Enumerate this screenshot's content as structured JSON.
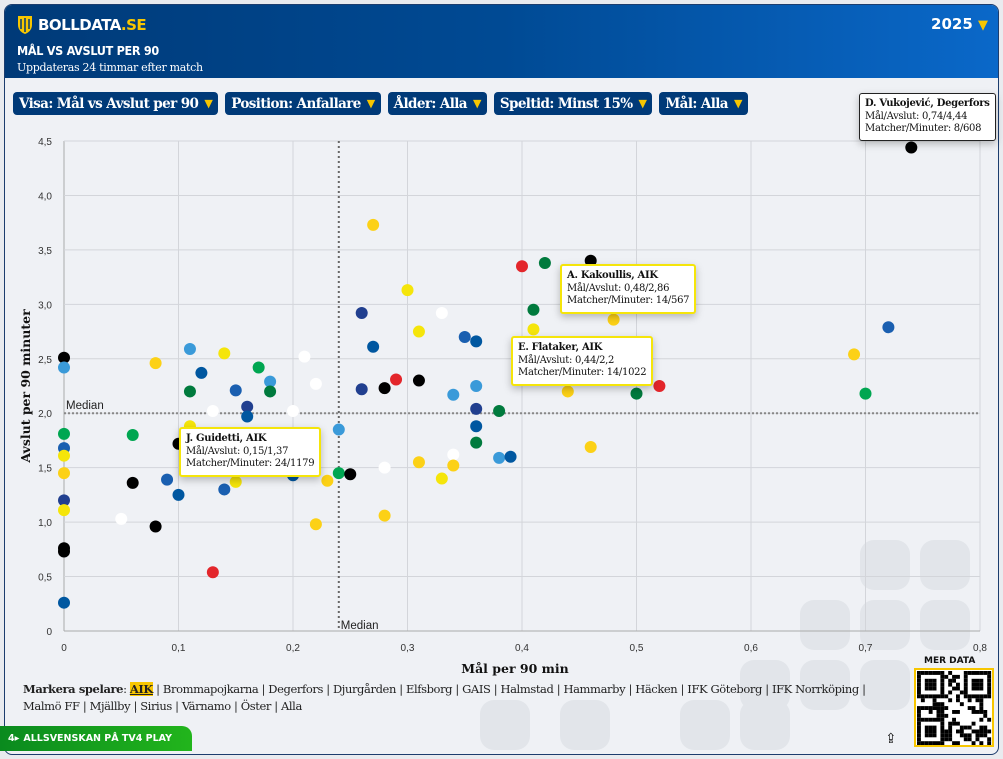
{
  "header": {
    "brand_main": "BOLLDATA",
    "brand_suffix": ".SE",
    "year": "2025",
    "title": "MÅL VS AVSLUT PER 90",
    "subtitle": "Uppdateras 24 timmar efter match"
  },
  "filters": [
    {
      "label": "Visa: Mål vs Avslut per 90"
    },
    {
      "label": "Position: Anfallare"
    },
    {
      "label": "Ålder: Alla"
    },
    {
      "label": "Speltid: Minst 15%"
    },
    {
      "label": "Mål: Alla"
    }
  ],
  "tooltips": [
    {
      "name": "D. Vukojević, Degerfors",
      "goals_shots": "Mål/Avslut: 0,74/4,44",
      "matches_minutes": "Matcher/Minuter: 8/608"
    },
    {
      "name": "A. Kakoullis, AIK",
      "goals_shots": "Mål/Avslut: 0,48/2,86",
      "matches_minutes": "Matcher/Minuter: 14/567"
    },
    {
      "name": "E. Flataker, AIK",
      "goals_shots": "Mål/Avslut: 0,44/2,2",
      "matches_minutes": "Matcher/Minuter: 14/1022"
    },
    {
      "name": "J. Guidetti, AIK",
      "goals_shots": "Mål/Avslut: 0,15/1,37",
      "matches_minutes": "Matcher/Minuter: 24/1179"
    }
  ],
  "legend": {
    "label": "Markera spelare",
    "teams": [
      "AIK",
      "Brommapojkarna",
      "Degerfors",
      "Djurgården",
      "Elfsborg",
      "GAIS",
      "Halmstad",
      "Hammarby",
      "Häcken",
      "IFK Göteborg",
      "IFK Norrköping",
      "Malmö FF",
      "Mjällby",
      "Sirius",
      "Värnamo",
      "Öster",
      "Alla"
    ],
    "selected": "AIK"
  },
  "promo": {
    "label": "ALLSVENSKAN PÅ TV4 PLAY",
    "icon": "tv4-logo"
  },
  "qr": {
    "label": "MER DATA"
  },
  "colors": {
    "black": "#000000",
    "lightblue": "#3a9ad9",
    "green": "#00a651",
    "darkgreen": "#007a3d",
    "blue": "#1a5fb0",
    "blue2": "#0057a0",
    "navy": "#213f8f",
    "yellow": "#f5e50a",
    "gold": "#fcd116",
    "red": "#e3262b",
    "white": "#ffffff"
  },
  "chart_data": {
    "type": "scatter",
    "xlabel": "Mål per 90 min",
    "ylabel": "Avslut per 90 minuter",
    "xlim": [
      0,
      0.8
    ],
    "ylim": [
      0,
      4.5
    ],
    "xticks": [
      "0",
      "0,1",
      "0,2",
      "0,3",
      "0,4",
      "0,5",
      "0,6",
      "0,7",
      "0,8"
    ],
    "yticks": [
      "0",
      "0,5",
      "1,0",
      "1,5",
      "2,0",
      "2,5",
      "3,0",
      "3,5",
      "4,0",
      "4,5"
    ],
    "grid": true,
    "median_x": 0.24,
    "median_y": 2.0,
    "median_label": "Median",
    "points": [
      [
        0,
        2.51,
        "black"
      ],
      [
        0,
        2.42,
        "lightblue"
      ],
      [
        0,
        1.81,
        "green"
      ],
      [
        0,
        1.68,
        "blue"
      ],
      [
        0,
        1.61,
        "yellow"
      ],
      [
        0,
        1.45,
        "gold"
      ],
      [
        0,
        1.2,
        "navy"
      ],
      [
        0,
        1.11,
        "yellow"
      ],
      [
        0,
        0.76,
        "black"
      ],
      [
        0,
        0.73,
        "black"
      ],
      [
        0,
        0.26,
        "blue2"
      ],
      [
        0.06,
        1.8,
        "green"
      ],
      [
        0.06,
        1.36,
        "black"
      ],
      [
        0.05,
        1.03,
        "white"
      ],
      [
        0.08,
        2.46,
        "gold"
      ],
      [
        0.08,
        0.96,
        "black"
      ],
      [
        0.09,
        1.39,
        "blue"
      ],
      [
        0.1,
        1.72,
        "black"
      ],
      [
        0.1,
        1.25,
        "blue2"
      ],
      [
        0.11,
        2.59,
        "lightblue"
      ],
      [
        0.11,
        2.2,
        "darkgreen"
      ],
      [
        0.11,
        1.88,
        "yellow"
      ],
      [
        0.12,
        2.37,
        "blue2"
      ],
      [
        0.13,
        2.02,
        "white"
      ],
      [
        0.13,
        0.54,
        "red"
      ],
      [
        0.14,
        2.55,
        "yellow"
      ],
      [
        0.14,
        1.3,
        "blue"
      ],
      [
        0.15,
        2.21,
        "blue"
      ],
      [
        0.15,
        1.37,
        "yellow"
      ],
      [
        0.16,
        2.06,
        "navy"
      ],
      [
        0.16,
        1.97,
        "blue2"
      ],
      [
        0.17,
        2.42,
        "green"
      ],
      [
        0.18,
        2.29,
        "lightblue"
      ],
      [
        0.18,
        2.2,
        "darkgreen"
      ],
      [
        0.2,
        2.02,
        "white"
      ],
      [
        0.2,
        1.43,
        "blue2"
      ],
      [
        0.21,
        2.52,
        "white"
      ],
      [
        0.22,
        2.27,
        "white"
      ],
      [
        0.22,
        0.98,
        "gold"
      ],
      [
        0.23,
        1.38,
        "gold"
      ],
      [
        0.24,
        1.85,
        "lightblue"
      ],
      [
        0.24,
        1.45,
        "green"
      ],
      [
        0.25,
        1.44,
        "black"
      ],
      [
        0.26,
        2.92,
        "navy"
      ],
      [
        0.26,
        2.22,
        "navy"
      ],
      [
        0.27,
        3.73,
        "gold"
      ],
      [
        0.27,
        2.61,
        "blue2"
      ],
      [
        0.28,
        2.23,
        "black"
      ],
      [
        0.28,
        1.5,
        "white"
      ],
      [
        0.28,
        1.06,
        "gold"
      ],
      [
        0.29,
        2.31,
        "red"
      ],
      [
        0.3,
        3.13,
        "yellow"
      ],
      [
        0.31,
        2.75,
        "yellow"
      ],
      [
        0.31,
        2.3,
        "black"
      ],
      [
        0.31,
        1.55,
        "gold"
      ],
      [
        0.33,
        2.92,
        "white"
      ],
      [
        0.33,
        1.4,
        "yellow"
      ],
      [
        0.34,
        2.17,
        "lightblue"
      ],
      [
        0.34,
        1.62,
        "white"
      ],
      [
        0.34,
        1.52,
        "gold"
      ],
      [
        0.35,
        2.7,
        "blue"
      ],
      [
        0.36,
        2.66,
        "blue2"
      ],
      [
        0.36,
        2.25,
        "lightblue"
      ],
      [
        0.36,
        2.04,
        "navy"
      ],
      [
        0.36,
        1.88,
        "blue2"
      ],
      [
        0.36,
        1.73,
        "darkgreen"
      ],
      [
        0.38,
        2.02,
        "darkgreen"
      ],
      [
        0.38,
        1.59,
        "lightblue"
      ],
      [
        0.39,
        1.6,
        "blue2"
      ],
      [
        0.4,
        3.35,
        "red"
      ],
      [
        0.42,
        3.38,
        "darkgreen"
      ],
      [
        0.41,
        2.95,
        "darkgreen"
      ],
      [
        0.41,
        2.77,
        "yellow"
      ],
      [
        0.46,
        3.4,
        "black"
      ],
      [
        0.44,
        2.2,
        "gold"
      ],
      [
        0.46,
        1.69,
        "gold"
      ],
      [
        0.48,
        2.86,
        "gold"
      ],
      [
        0.5,
        2.18,
        "darkgreen"
      ],
      [
        0.52,
        2.25,
        "red"
      ],
      [
        0.69,
        2.54,
        "gold"
      ],
      [
        0.7,
        2.18,
        "green"
      ],
      [
        0.72,
        2.79,
        "blue"
      ],
      [
        0.74,
        4.44,
        "black"
      ]
    ]
  }
}
